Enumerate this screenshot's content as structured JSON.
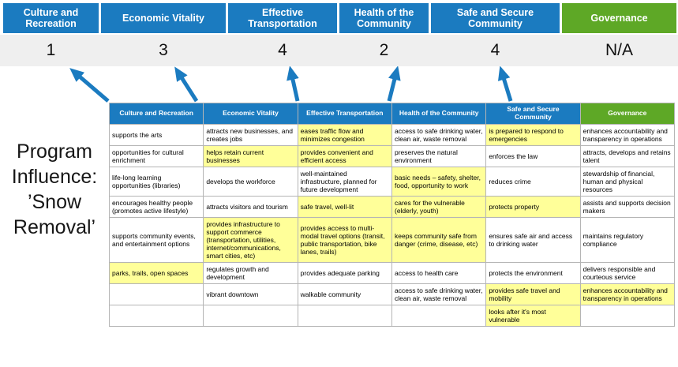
{
  "title": "Program\nInfluence:\n’Snow\nRemoval’",
  "colors": {
    "category_blue": "#1B7BC0",
    "governance_green": "#5EA826",
    "highlight_yellow": "#FFFF99",
    "score_strip_gray": "#EFEFEF",
    "arrow_blue": "#1B7BC0"
  },
  "categories": [
    {
      "label": "Culture and Recreation",
      "score": "1",
      "theme": "blue"
    },
    {
      "label": "Economic Vitality",
      "score": "3",
      "theme": "blue"
    },
    {
      "label": "Effective Transportation",
      "score": "4",
      "theme": "blue"
    },
    {
      "label": "Health of the Community",
      "score": "2",
      "theme": "blue"
    },
    {
      "label": "Safe and Secure Community",
      "score": "4",
      "theme": "blue"
    },
    {
      "label": "Governance",
      "score": "N/A",
      "theme": "green"
    }
  ],
  "matrix": {
    "rows": [
      [
        {
          "t": "supports the arts",
          "h": false
        },
        {
          "t": "attracts new businesses, and creates jobs",
          "h": false
        },
        {
          "t": "eases traffic flow and minimizes congestion",
          "h": true
        },
        {
          "t": "access to safe drinking water, clean air, waste removal",
          "h": false
        },
        {
          "t": "is prepared to respond to emergencies",
          "h": true
        },
        {
          "t": "enhances accountability and transparency in operations",
          "h": false
        }
      ],
      [
        {
          "t": "opportunities for cultural enrichment",
          "h": false
        },
        {
          "t": "helps retain current businesses",
          "h": true
        },
        {
          "t": "provides convenient and efficient access",
          "h": true
        },
        {
          "t": "preserves the natural environment",
          "h": false
        },
        {
          "t": "enforces the law",
          "h": false
        },
        {
          "t": "attracts, develops and retains talent",
          "h": false
        }
      ],
      [
        {
          "t": "life-long learning opportunities (libraries)",
          "h": false
        },
        {
          "t": "develops the workforce",
          "h": false
        },
        {
          "t": "well-maintained infrastructure, planned for future development",
          "h": false
        },
        {
          "t": "basic needs – safety, shelter, food, opportunity to work",
          "h": true
        },
        {
          "t": "reduces crime",
          "h": false
        },
        {
          "t": "stewardship of financial, human and physical resources",
          "h": false
        }
      ],
      [
        {
          "t": "encourages healthy people (promotes active lifestyle)",
          "h": false
        },
        {
          "t": "attracts visitors and tourism",
          "h": false
        },
        {
          "t": "safe travel, well-lit",
          "h": true
        },
        {
          "t": "cares for the vulnerable (elderly, youth)",
          "h": true
        },
        {
          "t": "protects property",
          "h": true
        },
        {
          "t": "assists and supports decision makers",
          "h": false
        }
      ],
      [
        {
          "t": "supports community events, and entertainment options",
          "h": false
        },
        {
          "t": "provides infrastructure to support commerce (transportation, utilities, internet/communications, smart cities, etc)",
          "h": true
        },
        {
          "t": "provides access to multi-modal travel options (transit, public transportation, bike lanes, trails)",
          "h": true
        },
        {
          "t": "keeps community safe from danger (crime, disease, etc)",
          "h": true
        },
        {
          "t": "ensures safe air and access to drinking water",
          "h": false
        },
        {
          "t": "maintains regulatory compliance",
          "h": false
        }
      ],
      [
        {
          "t": "parks, trails, open spaces",
          "h": true
        },
        {
          "t": "regulates growth and development",
          "h": false
        },
        {
          "t": "provides adequate parking",
          "h": false
        },
        {
          "t": "access to health care",
          "h": false
        },
        {
          "t": "protects the environment",
          "h": false
        },
        {
          "t": "delivers responsible and courteous service",
          "h": false
        }
      ],
      [
        {
          "t": "",
          "h": false
        },
        {
          "t": "vibrant downtown",
          "h": false
        },
        {
          "t": "walkable community",
          "h": false
        },
        {
          "t": "access to safe drinking water, clean air, waste removal",
          "h": false
        },
        {
          "t": "provides safe travel and mobility",
          "h": true
        },
        {
          "t": "enhances accountability and transparency in operations",
          "h": true
        }
      ],
      [
        {
          "t": "",
          "h": false
        },
        {
          "t": "",
          "h": false
        },
        {
          "t": "",
          "h": false
        },
        {
          "t": "",
          "h": false
        },
        {
          "t": "looks after it's most vulnerable",
          "h": true
        },
        {
          "t": "",
          "h": false
        }
      ]
    ]
  }
}
